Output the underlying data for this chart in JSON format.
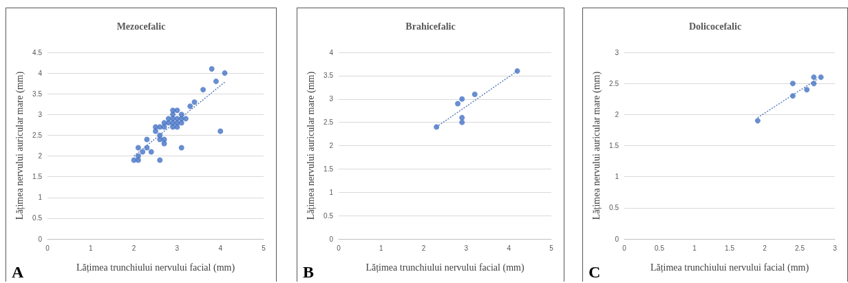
{
  "chart_data": [
    {
      "type": "scatter",
      "title": "Mezocefalic",
      "xlabel": "Lățimea trunchiului nervului facial (mm)",
      "ylabel": "Lățimea nervului auricular mare (mm)",
      "annotations": [
        "A"
      ],
      "xlim": [
        0,
        5
      ],
      "xticks": [
        0,
        1,
        2,
        3,
        4,
        5
      ],
      "ylim": [
        0,
        4.5
      ],
      "yticks": [
        0,
        0.5,
        1,
        1.5,
        2,
        2.5,
        3,
        3.5,
        4,
        4.5
      ],
      "grid": "y",
      "marker": "circle",
      "series": [
        {
          "color": "#4472c4",
          "x": [
            2.0,
            2.1,
            2.1,
            2.1,
            2.2,
            2.3,
            2.3,
            2.4,
            2.5,
            2.5,
            2.6,
            2.6,
            2.6,
            2.6,
            2.7,
            2.7,
            2.7,
            2.7,
            2.8,
            2.8,
            2.9,
            2.9,
            2.9,
            2.9,
            2.9,
            3.0,
            3.0,
            3.0,
            3.0,
            3.1,
            3.1,
            3.1,
            3.1,
            3.2,
            3.3,
            3.4,
            3.6,
            3.8,
            3.9,
            4.1,
            4.0
          ],
          "values": [
            1.9,
            1.9,
            2.0,
            2.2,
            2.1,
            2.2,
            2.4,
            2.1,
            2.6,
            2.7,
            2.7,
            2.5,
            2.4,
            1.9,
            2.7,
            2.8,
            2.4,
            2.3,
            2.8,
            2.9,
            2.7,
            2.8,
            2.9,
            3.0,
            3.1,
            2.7,
            2.8,
            2.9,
            3.1,
            2.8,
            2.9,
            3.0,
            2.2,
            2.9,
            3.2,
            3.3,
            3.6,
            4.1,
            3.8,
            4.0,
            2.6
          ]
        },
        {
          "type": "line",
          "color": "#5b7fbf",
          "line_style": "dotted",
          "marker": "none",
          "x": [
            2.0,
            4.1
          ],
          "values": [
            2.0,
            3.78
          ]
        }
      ]
    },
    {
      "type": "scatter",
      "title": "Brahicefalic",
      "xlabel": "Lățimea trunchiului nervului facial (mm)",
      "ylabel": "Lățimea nervului auricular mare (mm)",
      "annotations": [
        "B"
      ],
      "xlim": [
        0,
        5
      ],
      "xticks": [
        0,
        1,
        2,
        3,
        4,
        5
      ],
      "ylim": [
        0,
        4
      ],
      "yticks": [
        0,
        0.5,
        1,
        1.5,
        2,
        2.5,
        3,
        3.5,
        4
      ],
      "grid": "y",
      "marker": "circle",
      "series": [
        {
          "color": "#4472c4",
          "x": [
            2.3,
            2.8,
            2.9,
            2.9,
            2.9,
            3.2,
            4.2
          ],
          "values": [
            2.4,
            2.9,
            3.0,
            2.6,
            2.5,
            3.1,
            3.6
          ]
        },
        {
          "type": "line",
          "color": "#5b7fbf",
          "line_style": "dotted",
          "marker": "none",
          "x": [
            2.3,
            4.2
          ],
          "values": [
            2.4,
            3.6
          ]
        }
      ]
    },
    {
      "type": "scatter",
      "title": "Dolicocefalic",
      "xlabel": "Lățimea trunchiului nervului facial (mm)",
      "ylabel": "Lățimea nervului auricular mare (mm)",
      "annotations": [
        "C"
      ],
      "xlim": [
        0,
        3
      ],
      "xticks": [
        0,
        0.5,
        1,
        1.5,
        2,
        2.5,
        3
      ],
      "ylim": [
        0,
        3
      ],
      "yticks": [
        0,
        0.5,
        1,
        1.5,
        2,
        2.5,
        3
      ],
      "grid": "y",
      "marker": "circle",
      "series": [
        {
          "color": "#4472c4",
          "x": [
            1.9,
            2.4,
            2.4,
            2.6,
            2.7,
            2.7,
            2.8
          ],
          "values": [
            1.9,
            2.5,
            2.3,
            2.4,
            2.6,
            2.5,
            2.6
          ]
        },
        {
          "type": "line",
          "color": "#5b7fbf",
          "line_style": "dotted",
          "marker": "none",
          "x": [
            1.9,
            2.75
          ],
          "values": [
            1.95,
            2.57
          ]
        }
      ]
    }
  ]
}
